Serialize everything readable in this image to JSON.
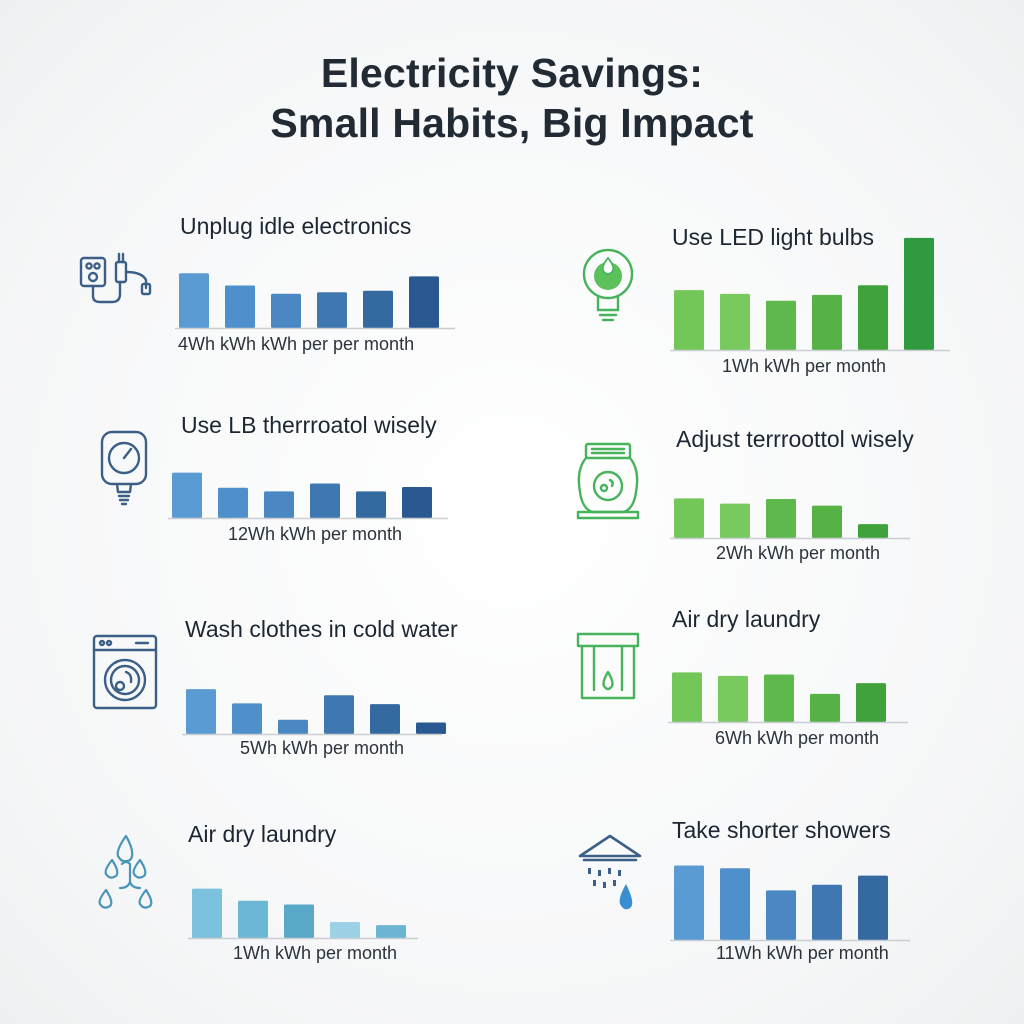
{
  "header": {
    "title_line1": "Electricity Savings:",
    "title_line2": "Small Habits, Big Impact"
  },
  "colors": {
    "blue": [
      "#5b9bd3",
      "#4f90cc",
      "#4a87c3",
      "#3f78b1",
      "#356aa1",
      "#2a5890"
    ],
    "teal": [
      "#7cc2de",
      "#6db7d6",
      "#5aa8c8",
      "#9dd2e6",
      "#6bb5d2"
    ],
    "green": [
      "#73c658",
      "#78c95e",
      "#5fb84b",
      "#56b244",
      "#3fa23a",
      "#2f9a40"
    ],
    "axis": "#c9ced3",
    "icon_blue": "#3b5f86",
    "icon_teal": "#4a94b8",
    "icon_green": "#47b35a"
  },
  "chart_data": [
    {
      "type": "bar",
      "title": "Unplug idle electronics",
      "caption": "4Wh kWh kWh per per month",
      "icon": "plug-icon",
      "palette": "blue",
      "values": [
        72,
        56,
        45,
        47,
        49,
        68
      ],
      "ylim": [
        0,
        100
      ]
    },
    {
      "type": "bar",
      "title": "Use LED light bulbs",
      "caption": "1Wh kWh per month",
      "icon": "light-bulb-icon",
      "palette": "green",
      "values": [
        62,
        58,
        51,
        57,
        67,
        116
      ],
      "ylim": [
        0,
        120
      ]
    },
    {
      "type": "bar",
      "title": "Use LB therrroatol wisely",
      "caption": "12Wh kWh per month",
      "icon": "thermostat-icon",
      "palette": "blue",
      "values": [
        63,
        42,
        37,
        48,
        37,
        43
      ],
      "ylim": [
        0,
        100
      ]
    },
    {
      "type": "bar",
      "title": "Adjust terrroottol wisely",
      "caption": "2Wh kWh per month",
      "icon": "thermostat-dial-icon",
      "palette": "green",
      "values": [
        60,
        52,
        59,
        49,
        21
      ],
      "ylim": [
        0,
        100
      ]
    },
    {
      "type": "bar",
      "title": "Wash clothes in cold water",
      "caption": "5Wh kWh per month",
      "icon": "washing-machine-icon",
      "palette": "blue",
      "values": [
        66,
        45,
        21,
        57,
        44,
        17
      ],
      "ylim": [
        0,
        100
      ]
    },
    {
      "type": "bar",
      "title": "Air dry laundry",
      "caption": "6Wh kWh per month",
      "icon": "drying-rack-icon",
      "palette": "green",
      "values": [
        69,
        64,
        66,
        39,
        54
      ],
      "ylim": [
        0,
        100
      ]
    },
    {
      "type": "bar",
      "title": "Air dry laundry",
      "caption": "1Wh kWh per month",
      "icon": "water-drops-icon",
      "palette": "teal",
      "values": [
        65,
        49,
        44,
        21,
        17
      ],
      "ylim": [
        0,
        100
      ]
    },
    {
      "type": "bar",
      "title": "Take shorter showers",
      "caption": "11Wh kWh per month",
      "icon": "shower-icon",
      "palette": "blue",
      "values": [
        81,
        78,
        54,
        60,
        70
      ],
      "ylim": [
        0,
        100
      ]
    }
  ]
}
